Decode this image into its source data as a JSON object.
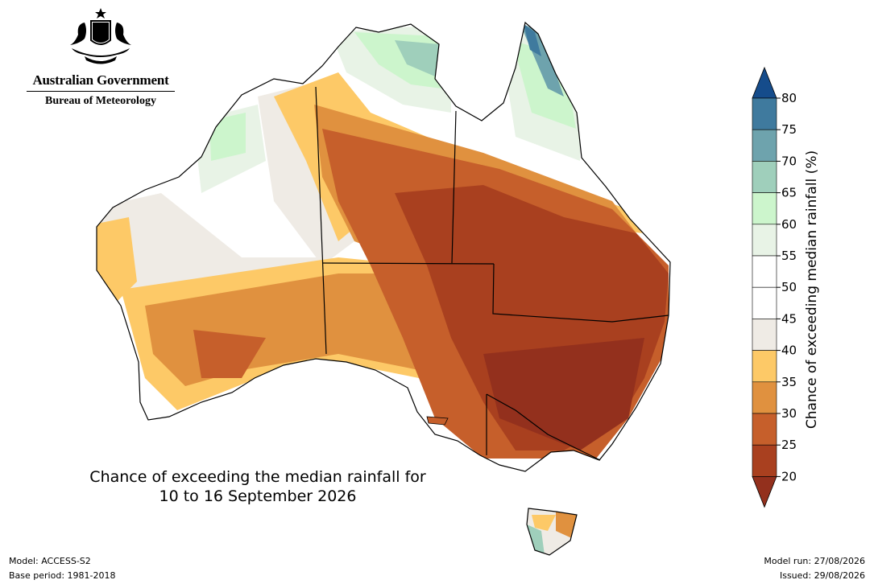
{
  "header": {
    "government": "Australian Government",
    "bureau": "Bureau of Meteorology"
  },
  "map": {
    "title_line1": "Chance of exceeding the median rainfall for",
    "title_line2": "10 to 16 September 2026"
  },
  "legend": {
    "title": "Chance of exceeding median rainfall (%)",
    "ticks": [
      "80",
      "75",
      "70",
      "65",
      "60",
      "55",
      "50",
      "45",
      "40",
      "35",
      "30",
      "25",
      "20"
    ],
    "levels": [
      {
        "range": "75-80",
        "color": "#3f7a9e"
      },
      {
        "range": "70-75",
        "color": "#6ea3ad"
      },
      {
        "range": "65-70",
        "color": "#9fcfbb"
      },
      {
        "range": "60-65",
        "color": "#ccf5cc"
      },
      {
        "range": "55-60",
        "color": "#e8f3e6"
      },
      {
        "range": "50-55",
        "color": "#ffffff"
      },
      {
        "range": "45-50",
        "color": "#ffffff"
      },
      {
        "range": "40-45",
        "color": "#efebe5"
      },
      {
        "range": "35-40",
        "color": "#fdc967"
      },
      {
        "range": "30-35",
        "color": "#e0913f"
      },
      {
        "range": "25-30",
        "color": "#c65f2b"
      },
      {
        "range": "20-25",
        "color": "#a9401f"
      }
    ],
    "over_color": "#154c8b",
    "under_color": "#93301d"
  },
  "footer": {
    "model": "Model: ACCESS-S2",
    "base_period": "Base period: 1981-2018",
    "model_run": "Model run: 27/08/2026",
    "issued": "Issued: 29/08/2026"
  }
}
